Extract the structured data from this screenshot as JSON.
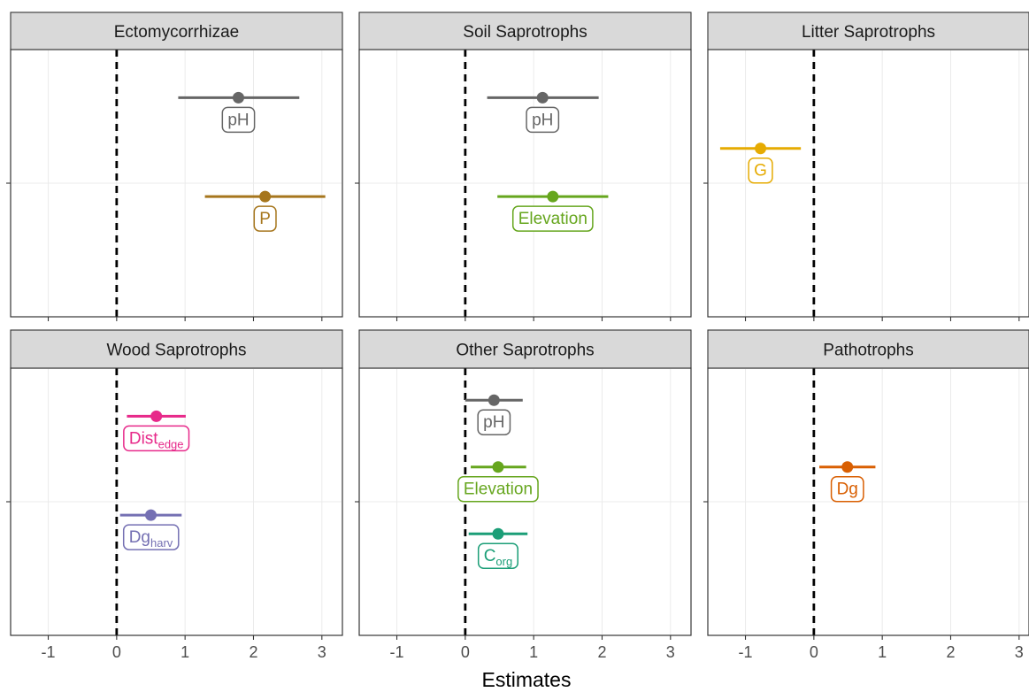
{
  "chart_data": {
    "type": "dot-interval",
    "xlabel": "Estimates",
    "xlim": [
      -1.55,
      3.3
    ],
    "x_ticks": [
      "-1",
      "0",
      "1",
      "2",
      "3"
    ],
    "x_tick_values": [
      -1,
      0,
      1,
      2,
      3
    ],
    "reference_line": 0,
    "grid": true,
    "panels": [
      {
        "title": "Ectomycorrhizae",
        "points": [
          {
            "label": "pH",
            "sub": "",
            "estimate": 1.78,
            "low": 0.9,
            "high": 2.67,
            "color": "#666666",
            "row": 0.82
          },
          {
            "label": "P",
            "sub": "",
            "estimate": 2.17,
            "low": 1.29,
            "high": 3.05,
            "color": "#A6761D",
            "row": 0.45
          }
        ]
      },
      {
        "title": "Soil Saprotrophs",
        "points": [
          {
            "label": "pH",
            "sub": "",
            "estimate": 1.13,
            "low": 0.32,
            "high": 1.95,
            "color": "#666666",
            "row": 0.82
          },
          {
            "label": "Elevation",
            "sub": "",
            "estimate": 1.28,
            "low": 0.47,
            "high": 2.09,
            "color": "#66A61E",
            "row": 0.45
          }
        ]
      },
      {
        "title": "Litter Saprotrophs",
        "points": [
          {
            "label": "G",
            "sub": "",
            "estimate": -0.78,
            "low": -1.37,
            "high": -0.19,
            "color": "#E6AB02",
            "row": 0.63
          }
        ]
      },
      {
        "title": "Wood Saprotrophs",
        "points": [
          {
            "label": "Dist",
            "sub": "edge",
            "estimate": 0.58,
            "low": 0.15,
            "high": 1.01,
            "color": "#E7298A",
            "row": 0.82
          },
          {
            "label": "Dg",
            "sub": "harv",
            "estimate": 0.5,
            "low": 0.05,
            "high": 0.95,
            "color": "#7570B3",
            "row": 0.45
          }
        ]
      },
      {
        "title": "Other Saprotrophs",
        "points": [
          {
            "label": "pH",
            "sub": "",
            "estimate": 0.42,
            "low": 0.0,
            "high": 0.84,
            "color": "#666666",
            "row": 0.88
          },
          {
            "label": "Elevation",
            "sub": "",
            "estimate": 0.48,
            "low": 0.08,
            "high": 0.89,
            "color": "#66A61E",
            "row": 0.63
          },
          {
            "label": "C",
            "sub": "org",
            "estimate": 0.48,
            "low": 0.05,
            "high": 0.91,
            "color": "#1B9E77",
            "row": 0.38
          }
        ]
      },
      {
        "title": "Pathotrophs",
        "points": [
          {
            "label": "Dg",
            "sub": "",
            "estimate": 0.49,
            "low": 0.08,
            "high": 0.9,
            "color": "#D95F02",
            "row": 0.63
          }
        ]
      }
    ]
  }
}
